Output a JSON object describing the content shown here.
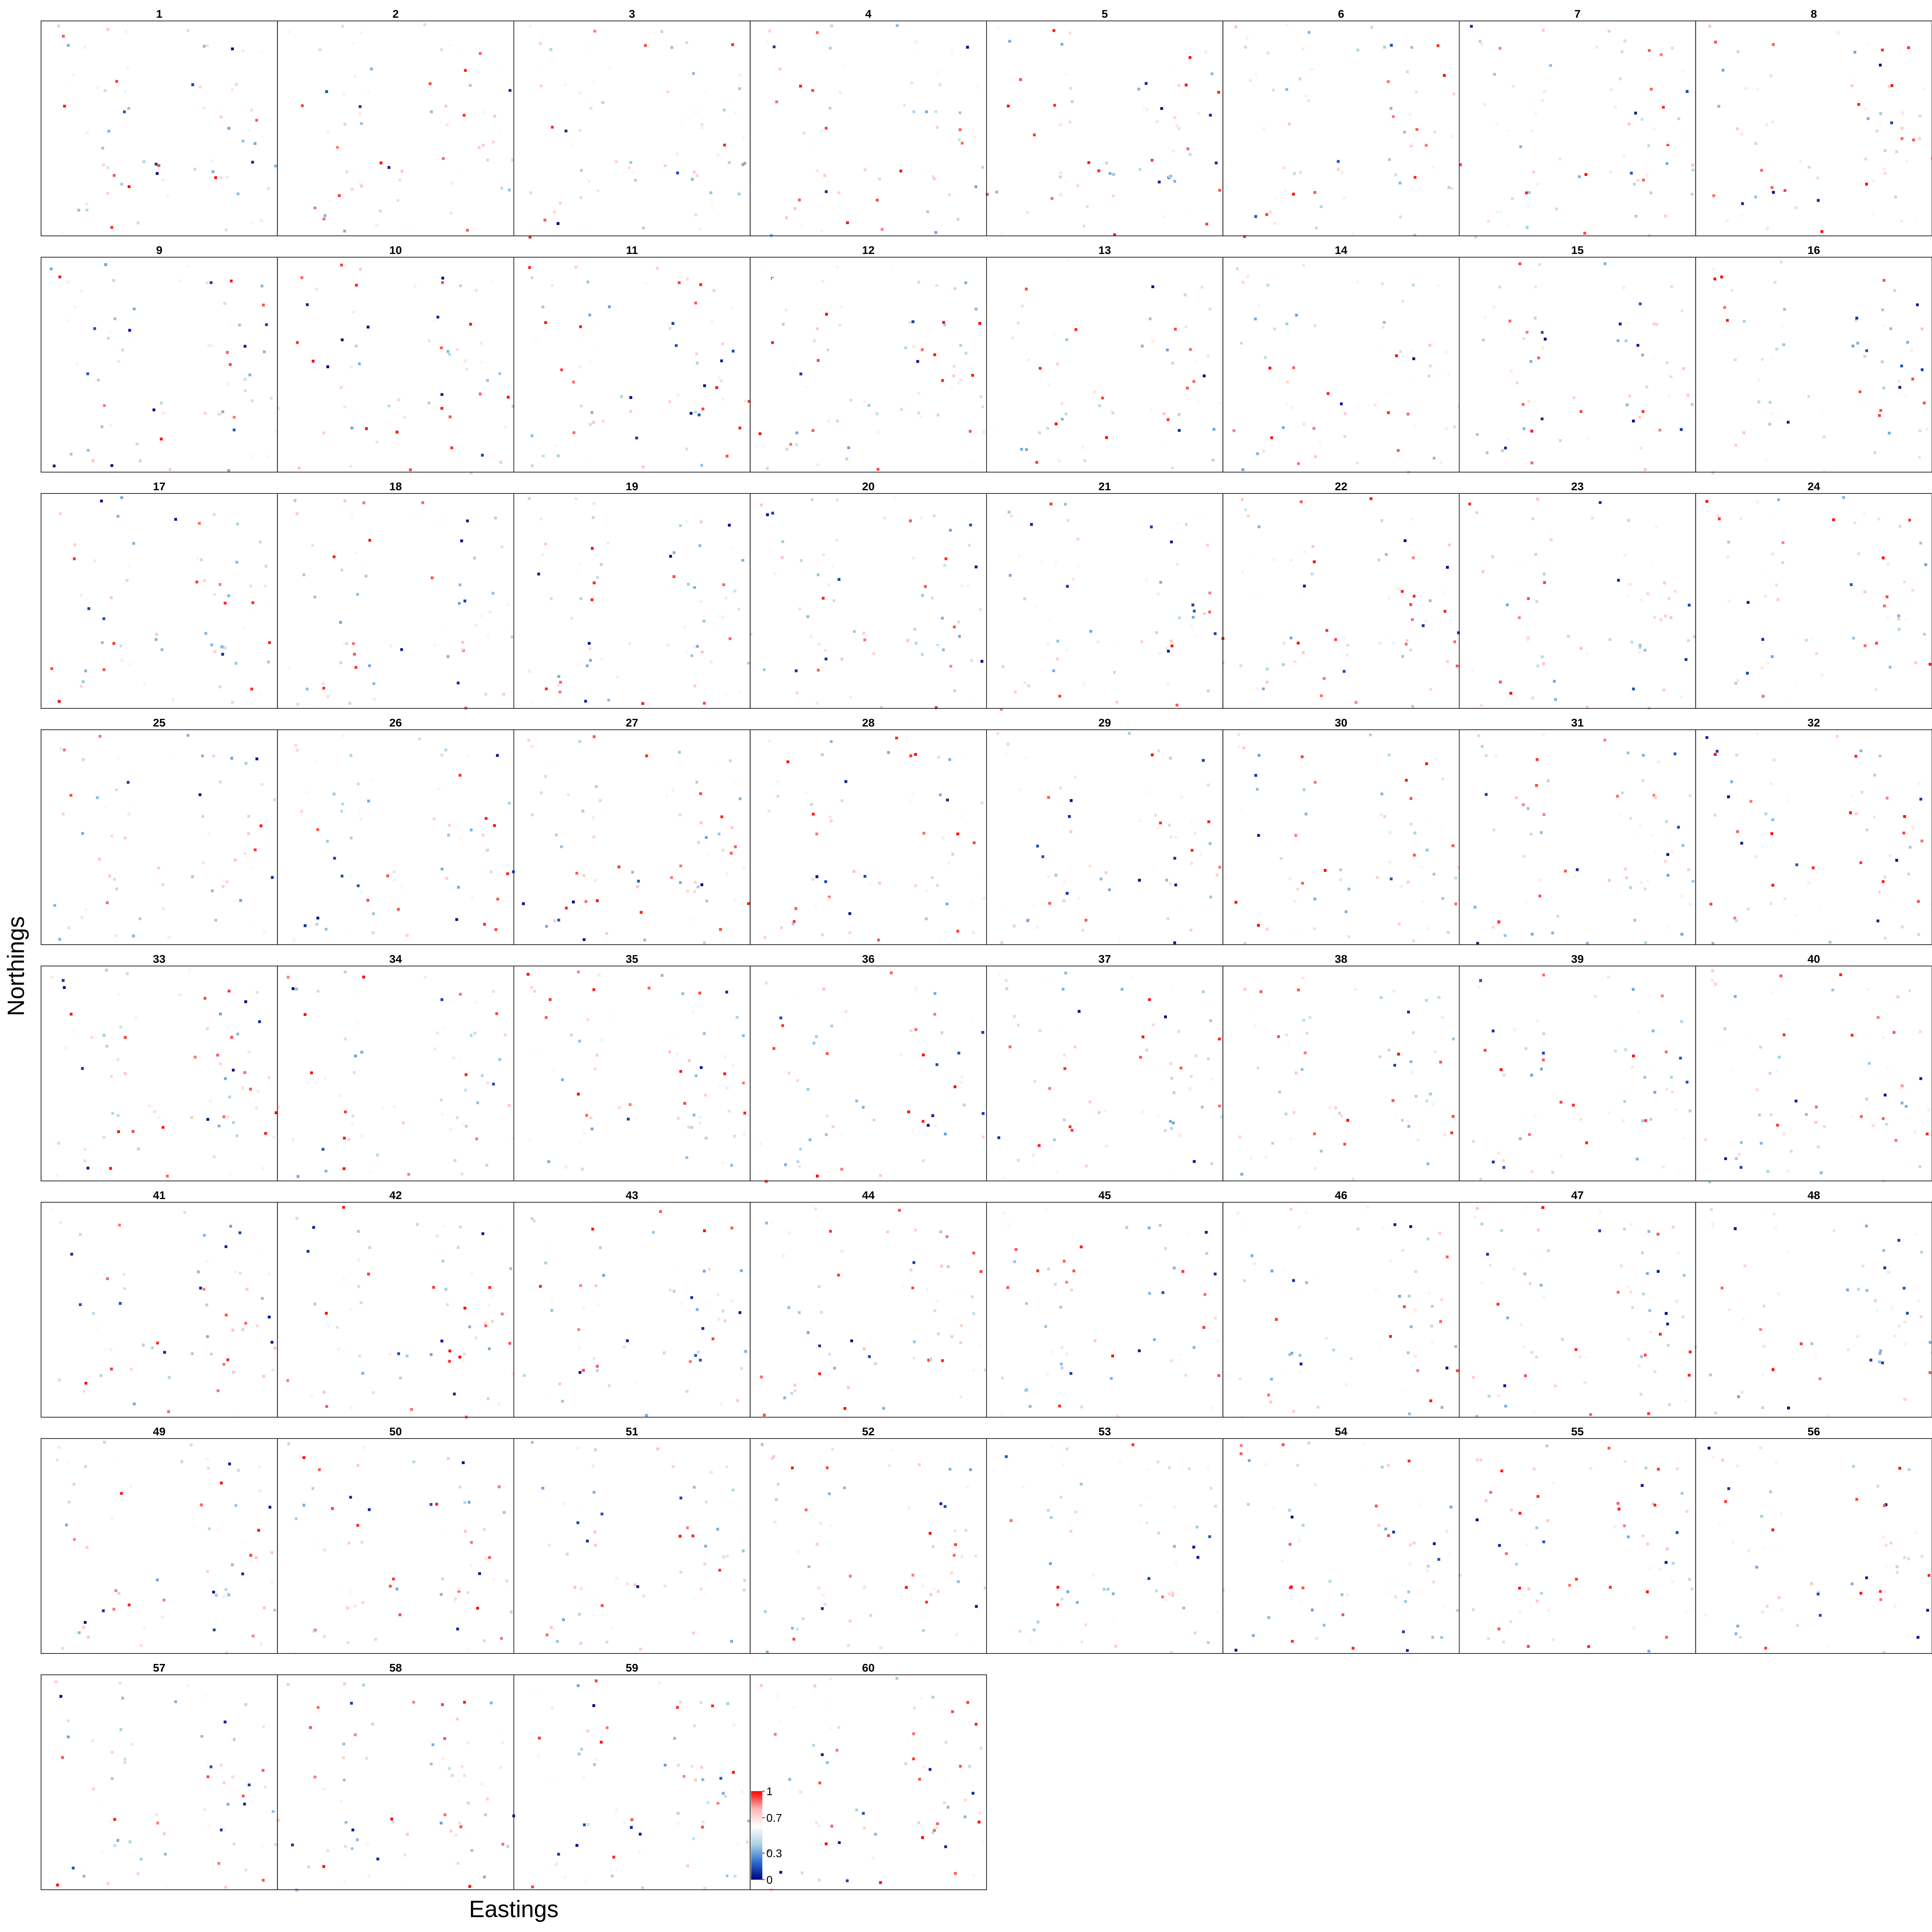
{
  "chart_data": {
    "type": "heatmap",
    "xlabel": "Eastings",
    "ylabel": "Northings",
    "panels": [
      "1",
      "2",
      "3",
      "4",
      "5",
      "6",
      "7",
      "8",
      "9",
      "10",
      "11",
      "12",
      "13",
      "14",
      "15",
      "16",
      "17",
      "18",
      "19",
      "20",
      "21",
      "22",
      "23",
      "24",
      "25",
      "26",
      "27",
      "28",
      "29",
      "30",
      "31",
      "32",
      "33",
      "34",
      "35",
      "36",
      "37",
      "38",
      "39",
      "40",
      "41",
      "42",
      "43",
      "44",
      "45",
      "46",
      "47",
      "48",
      "49",
      "50",
      "51",
      "52",
      "53",
      "54",
      "55",
      "56",
      "57",
      "58",
      "59",
      "60"
    ],
    "colorbar": {
      "min": 0,
      "max": 1,
      "ticks": [
        "1",
        "0.7",
        "0.3",
        "0"
      ],
      "tick_values": [
        1,
        0.7,
        0.3,
        0
      ],
      "colors": [
        "#00007f",
        "#2f6fd1",
        "#a9d3e4",
        "#ffffff",
        "#ffb6b6",
        "#ff0000"
      ]
    },
    "layout_grid": {
      "columns": 8,
      "rows": 8
    },
    "grid": false
  }
}
